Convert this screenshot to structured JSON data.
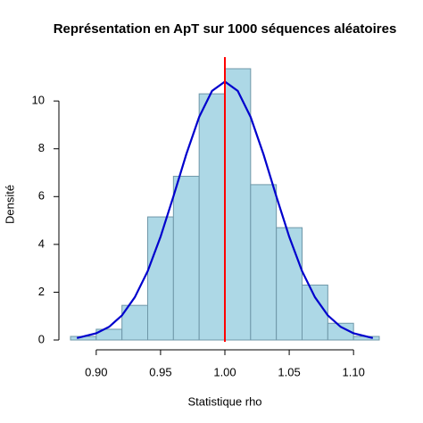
{
  "chart_data": {
    "type": "histogram",
    "title": "Représentation en ApT sur 1000 séquences aléatoires",
    "x_label": "Statistique rho",
    "y_label": "Densité",
    "bins": [
      0.88,
      0.9,
      0.92,
      0.94,
      0.96,
      0.98,
      1.0,
      1.02,
      1.04,
      1.06,
      1.08,
      1.1,
      1.12
    ],
    "values": [
      0.15,
      0.45,
      1.45,
      5.15,
      6.85,
      10.3,
      11.35,
      6.5,
      4.7,
      2.3,
      0.7,
      0.15
    ],
    "color": "#add8e6",
    "edgecolor": "#6f97a8",
    "curve": {
      "color": "#0000cd",
      "x": [
        0.885,
        0.9,
        0.91,
        0.92,
        0.93,
        0.94,
        0.95,
        0.96,
        0.97,
        0.98,
        0.99,
        1.0,
        1.01,
        1.02,
        1.03,
        1.04,
        1.05,
        1.06,
        1.07,
        1.08,
        1.09,
        1.1,
        1.115
      ],
      "y": [
        0.08,
        0.28,
        0.55,
        1.03,
        1.79,
        2.88,
        4.32,
        6.01,
        7.77,
        9.33,
        10.42,
        10.81,
        10.42,
        9.33,
        7.77,
        6.01,
        4.32,
        2.88,
        1.79,
        1.03,
        0.55,
        0.28,
        0.08
      ]
    },
    "vline": {
      "x": 1.0,
      "color": "#ff0000"
    },
    "xlim": [
      0.88,
      1.12
    ],
    "ylim": [
      0,
      11.35
    ],
    "xticks": [
      {
        "value": 0.9,
        "label": "0.90"
      },
      0.95,
      {
        "value": 1.0,
        "label": "1.00"
      },
      1.05,
      {
        "value": 1.1,
        "label": "1.10"
      }
    ],
    "yticks": [
      0,
      2,
      4,
      6,
      8,
      10
    ]
  }
}
